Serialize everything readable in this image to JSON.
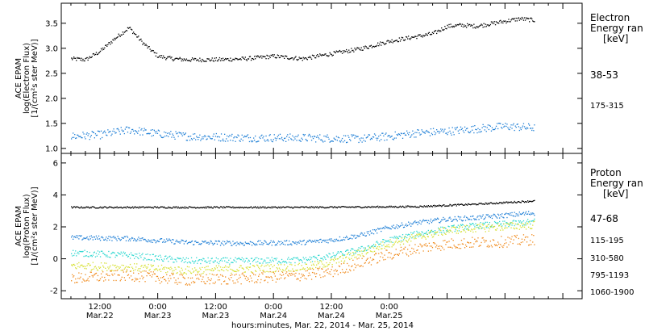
{
  "chart_data": [
    {
      "type": "scatter",
      "ylabel_lines": [
        "ACE EPAM",
        "log(Electron Flux)",
        "[1/(cm²s ster MeV)]"
      ],
      "ylim": [
        0.9,
        3.9
      ],
      "yticks": [
        "1.0",
        "1.5",
        "2.0",
        "2.5",
        "3.0",
        "3.5"
      ],
      "legend_title_lines": [
        "Electron",
        "Energy ran",
        "[keV]"
      ],
      "series": [
        {
          "name": "38-53",
          "color": "#000000",
          "scatter": 0.04,
          "x": [
            0,
            3,
            6,
            9,
            12,
            15,
            18,
            21,
            24,
            30,
            36,
            42,
            48,
            54,
            57,
            60,
            66,
            69,
            72,
            75,
            78,
            81,
            84,
            87,
            90,
            93,
            96
          ],
          "y": [
            2.8,
            2.78,
            2.95,
            3.2,
            3.42,
            3.1,
            2.85,
            2.8,
            2.78,
            2.78,
            2.8,
            2.85,
            2.8,
            2.9,
            2.95,
            3.0,
            3.15,
            3.2,
            3.25,
            3.3,
            3.45,
            3.47,
            3.45,
            3.5,
            3.55,
            3.6,
            3.57
          ]
        },
        {
          "name": "175-315",
          "color": "#1f7fd6",
          "scatter": 0.08,
          "x": [
            0,
            6,
            12,
            18,
            24,
            36,
            48,
            60,
            66,
            72,
            78,
            84,
            90,
            96
          ],
          "y": [
            1.25,
            1.28,
            1.38,
            1.3,
            1.25,
            1.22,
            1.22,
            1.2,
            1.25,
            1.32,
            1.35,
            1.4,
            1.45,
            1.42
          ]
        }
      ]
    },
    {
      "type": "scatter",
      "ylabel_lines": [
        "ACE EPAM",
        "log(Proton Flux)",
        "[1/(cm²s ster MeV)]"
      ],
      "ylim": [
        -2.5,
        6.6
      ],
      "yticks": [
        "-2",
        "0",
        "2",
        "4",
        "6"
      ],
      "legend_title_lines": [
        "Proton",
        "Energy ran",
        "[keV]"
      ],
      "series": [
        {
          "name": "47-68",
          "color": "#000000",
          "scatter": 0.05,
          "x": [
            0,
            24,
            48,
            60,
            72,
            84,
            96
          ],
          "y": [
            3.25,
            3.25,
            3.25,
            3.27,
            3.3,
            3.45,
            3.65
          ]
        },
        {
          "name": "115-195",
          "color": "#1f7fd6",
          "scatter": 0.15,
          "x": [
            0,
            12,
            24,
            36,
            48,
            54,
            60,
            66,
            72,
            78,
            84,
            90,
            96
          ],
          "y": [
            1.35,
            1.3,
            1.05,
            1.0,
            1.05,
            1.2,
            1.5,
            2.0,
            2.3,
            2.5,
            2.6,
            2.75,
            2.9
          ]
        },
        {
          "name": "310-580",
          "color": "#2fd8d0",
          "scatter": 0.2,
          "x": [
            0,
            12,
            24,
            36,
            48,
            54,
            60,
            66,
            72,
            78,
            84,
            90,
            96
          ],
          "y": [
            0.4,
            0.25,
            -0.1,
            -0.1,
            -0.05,
            0.2,
            0.6,
            1.2,
            1.6,
            1.9,
            2.1,
            2.2,
            2.35
          ]
        },
        {
          "name": "795-1193",
          "color": "#d6e030",
          "scatter": 0.25,
          "x": [
            0,
            12,
            24,
            36,
            48,
            54,
            60,
            66,
            72,
            78,
            84,
            90,
            96
          ],
          "y": [
            -0.4,
            -0.5,
            -0.7,
            -0.6,
            -0.5,
            -0.2,
            0.4,
            1.0,
            1.4,
            1.8,
            1.95,
            2.05,
            2.15
          ]
        },
        {
          "name": "1060-1900",
          "color": "#f08a1c",
          "scatter": 0.35,
          "x": [
            0,
            12,
            24,
            36,
            48,
            54,
            60,
            66,
            72,
            78,
            84,
            90,
            96
          ],
          "y": [
            -1.2,
            -1.0,
            -1.3,
            -1.2,
            -1.0,
            -0.8,
            -0.2,
            0.3,
            0.7,
            0.95,
            1.05,
            1.1,
            1.25
          ]
        }
      ]
    }
  ],
  "x_axis": {
    "range_hours": [
      -2,
      106
    ],
    "ticks": [
      {
        "x": 6,
        "time": "12:00",
        "date": "Mar.22"
      },
      {
        "x": 18,
        "time": "0:00",
        "date": "Mar.23"
      },
      {
        "x": 30,
        "time": "12:00",
        "date": "Mar.23"
      },
      {
        "x": 42,
        "time": "0:00",
        "date": "Mar.24"
      },
      {
        "x": 54,
        "time": "12:00",
        "date": "Mar.24"
      },
      {
        "x": 66,
        "time": "0:00",
        "date": "Mar.25"
      }
    ],
    "label": "hours:minutes, Mar. 22, 2014 - Mar. 25, 2014"
  }
}
